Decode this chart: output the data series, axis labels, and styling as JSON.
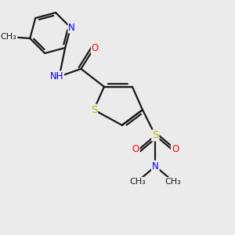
{
  "bg_color": "#ebebeb",
  "atom_colors": {
    "C": "#1a1a1a",
    "N": "#0000ff",
    "O": "#ff0000",
    "S_thio": "#b8b800",
    "S_sulfonyl": "#b8b800",
    "H": "#555555"
  },
  "bond_color": "#1a1a1a",
  "bond_width": 1.6,
  "font_size": 8.5,
  "figsize": [
    3.0,
    3.0
  ],
  "dpi": 100,
  "xlim": [
    0.5,
    8.5
  ],
  "ylim": [
    0.5,
    9.5
  ]
}
